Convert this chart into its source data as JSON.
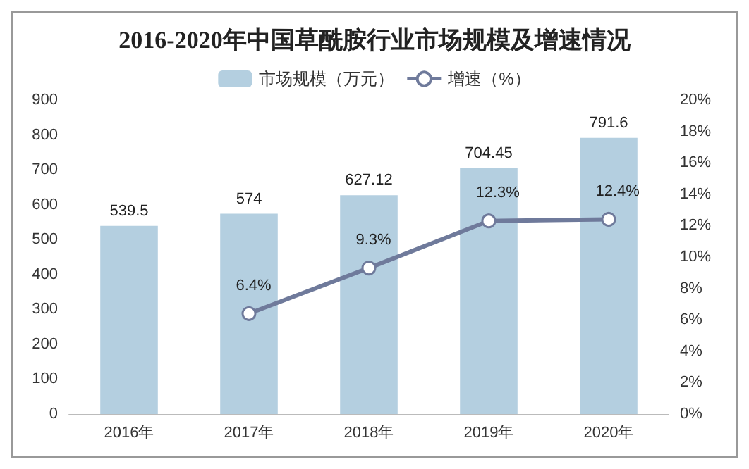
{
  "chart_data": {
    "type": "bar",
    "title": "2016-2020年中国草酰胺行业市场规模及增速情况",
    "categories": [
      "2016年",
      "2017年",
      "2018年",
      "2019年",
      "2020年"
    ],
    "series": [
      {
        "name": "市场规模（万元）",
        "color": "#b4cfe0",
        "values": [
          539.5,
          574,
          627.12,
          704.45,
          791.6
        ],
        "value_labels": [
          "539.5",
          "574",
          "627.12",
          "704.45",
          "791.6"
        ]
      },
      {
        "name": "增速（%）",
        "type": "line",
        "axis": "y2",
        "color": "#6f7a9b",
        "marker": "circle",
        "values": [
          null,
          6.4,
          9.3,
          12.3,
          12.4
        ],
        "value_labels": [
          null,
          "6.4%",
          "9.3%",
          "12.3%",
          "12.4%"
        ]
      }
    ],
    "ylim": [
      0,
      900
    ],
    "yticks": [
      0,
      100,
      200,
      300,
      400,
      500,
      600,
      700,
      800,
      900
    ],
    "y2lim": [
      0,
      20
    ],
    "y2ticks": [
      {
        "value": 0,
        "label": "0%"
      },
      {
        "value": 2,
        "label": "2%"
      },
      {
        "value": 4,
        "label": "4%"
      },
      {
        "value": 6,
        "label": "6%"
      },
      {
        "value": 8,
        "label": "8%"
      },
      {
        "value": 10,
        "label": "10%"
      },
      {
        "value": 12,
        "label": "12%"
      },
      {
        "value": 14,
        "label": "14%"
      },
      {
        "value": 16,
        "label": "16%"
      },
      {
        "value": 18,
        "label": "18%"
      },
      {
        "value": 20,
        "label": "20%"
      }
    ],
    "grid": false,
    "legend": "top"
  }
}
